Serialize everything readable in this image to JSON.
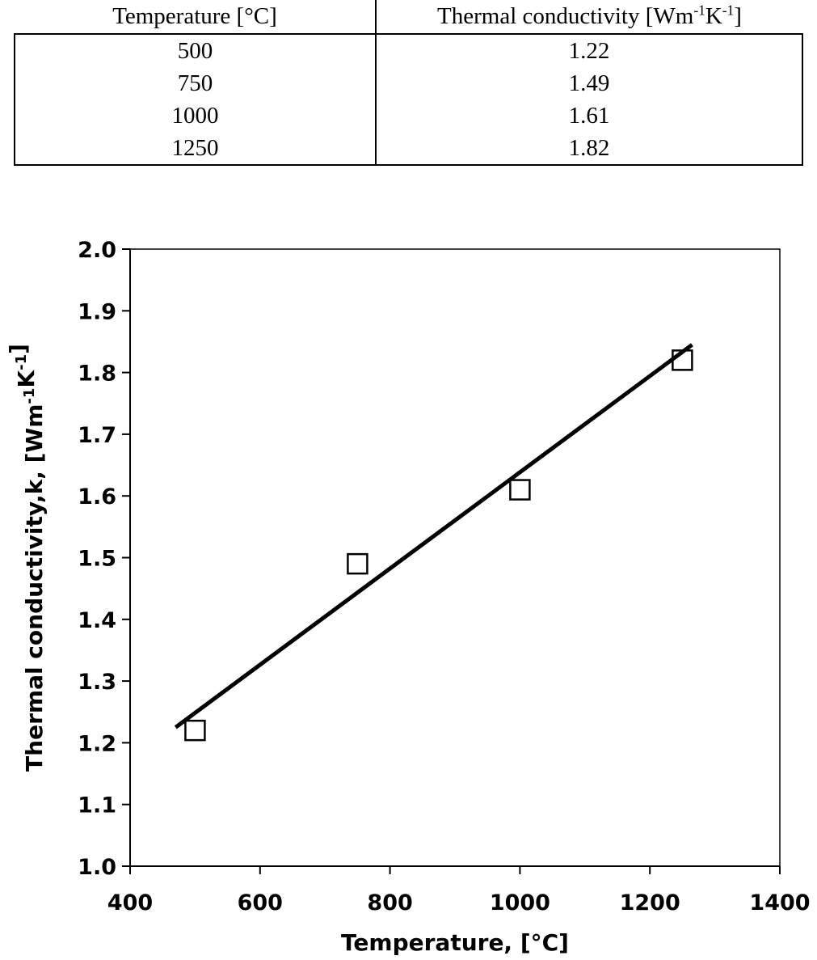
{
  "table": {
    "headers": [
      "Temperature [°C]",
      "Thermal conductivity [Wm-1K-1]"
    ],
    "header_parts": {
      "temp": "Temperature [°C]",
      "tc_prefix": "Thermal conductivity [Wm",
      "tc_exp1": "-1",
      "tc_mid": "K",
      "tc_exp2": "-1",
      "tc_suffix": "]"
    },
    "rows": [
      {
        "temperature": "500",
        "conductivity": "1.22"
      },
      {
        "temperature": "750",
        "conductivity": "1.49"
      },
      {
        "temperature": "1000",
        "conductivity": "1.61"
      },
      {
        "temperature": "1250",
        "conductivity": "1.82"
      }
    ]
  },
  "chart_data": {
    "type": "scatter",
    "xlabel": "Temperature, [°C]",
    "ylabel": "Thermal conductivity,k, [Wm-1K-1]",
    "ylabel_parts": {
      "prefix": "Thermal conductivity,k, [Wm",
      "exp1": "-1",
      "mid": "K",
      "exp2": "-1",
      "suffix": "]"
    },
    "xlim": [
      400,
      1400
    ],
    "ylim": [
      1.0,
      2.0
    ],
    "x_ticks": [
      400,
      600,
      800,
      1000,
      1200,
      1400
    ],
    "y_ticks": [
      1.0,
      1.1,
      1.2,
      1.3,
      1.4,
      1.5,
      1.6,
      1.7,
      1.8,
      1.9,
      2.0
    ],
    "series": [
      {
        "marker": "open-square",
        "x": [
          500,
          750,
          1000,
          1250
        ],
        "y": [
          1.22,
          1.49,
          1.61,
          1.82
        ]
      }
    ],
    "trendline": {
      "x": [
        470,
        1265
      ],
      "y": [
        1.225,
        1.845
      ]
    },
    "grid": false,
    "colors": {
      "marks": "#000000",
      "background": "#ffffff"
    }
  }
}
